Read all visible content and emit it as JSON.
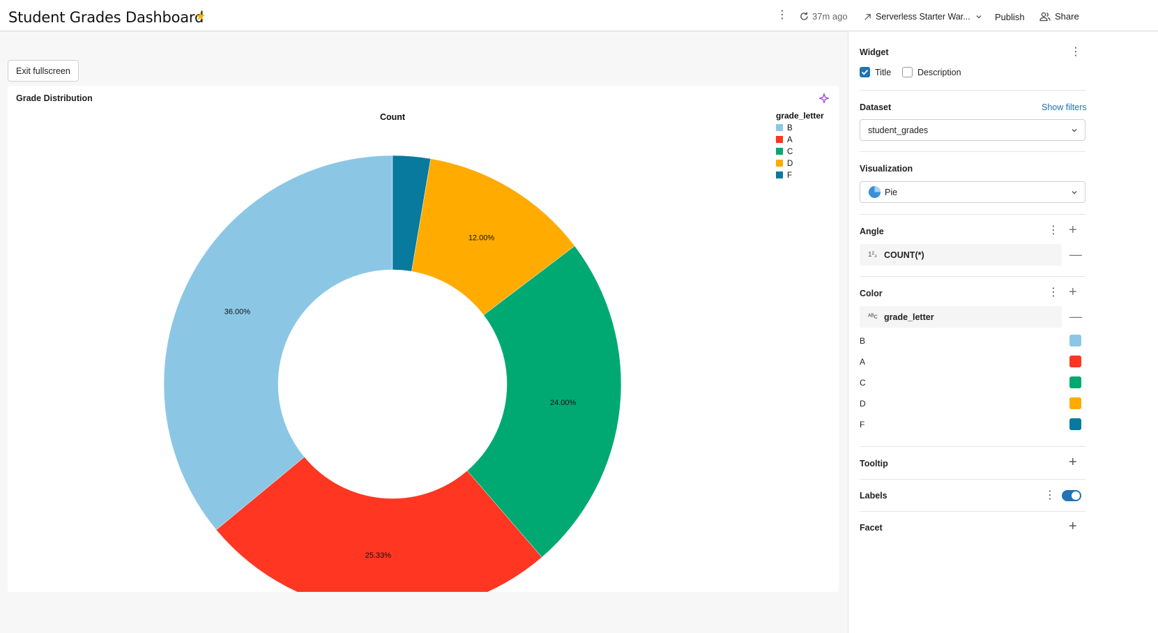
{
  "header": {
    "title": "Student Grades Dashboard",
    "refresh_time": "37m ago",
    "warehouse": "Serverless Starter War...",
    "publish_label": "Publish",
    "share_label": "Share"
  },
  "canvas": {
    "exit_fullscreen_label": "Exit fullscreen",
    "widget_title": "Grade Distribution"
  },
  "chart_data": {
    "type": "pie",
    "donut": true,
    "title": "Count",
    "legend_title": "grade_letter",
    "legend_position": "top-right",
    "categories": [
      "B",
      "A",
      "C",
      "D",
      "F"
    ],
    "values": [
      36.0,
      25.33,
      24.0,
      12.0,
      2.67
    ],
    "labels": [
      "36.00%",
      "25.33%",
      "24.00%",
      "12.00%",
      ""
    ],
    "colors": [
      "#8bc7e5",
      "#ff3621",
      "#00a972",
      "#ffab00",
      "#077a9d"
    ]
  },
  "panel": {
    "widget_label": "Widget",
    "title_checkbox_label": "Title",
    "title_checked": true,
    "description_checkbox_label": "Description",
    "description_checked": false,
    "dataset_label": "Dataset",
    "show_filters_label": "Show filters",
    "dataset_value": "student_grades",
    "visualization_label": "Visualization",
    "visualization_value": "Pie",
    "angle_label": "Angle",
    "angle_field": "COUNT(*)",
    "color_label": "Color",
    "color_field": "grade_letter",
    "color_entries": [
      {
        "label": "B",
        "color": "#8bc7e5"
      },
      {
        "label": "A",
        "color": "#ff3621"
      },
      {
        "label": "C",
        "color": "#00a972"
      },
      {
        "label": "D",
        "color": "#ffab00"
      },
      {
        "label": "F",
        "color": "#077a9d"
      }
    ],
    "tooltip_label": "Tooltip",
    "labels_label": "Labels",
    "labels_enabled": true,
    "facet_label": "Facet"
  }
}
